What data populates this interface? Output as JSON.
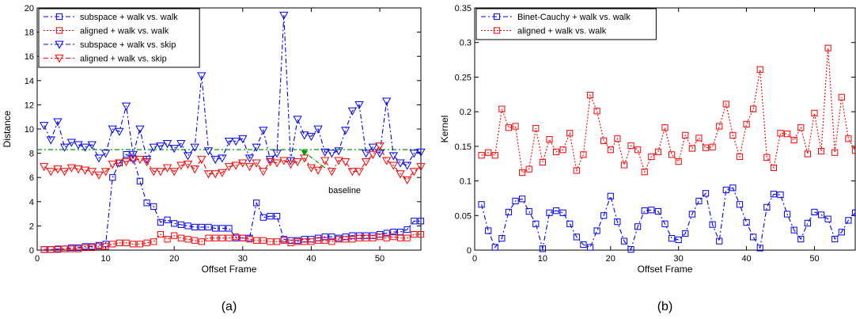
{
  "chart_data": [
    {
      "type": "line",
      "caption": "(a)",
      "xlabel": "Offset Frame",
      "ylabel": "Distance",
      "xlim": [
        0,
        56
      ],
      "ylim": [
        0,
        20
      ],
      "xticks": [
        0,
        10,
        20,
        30,
        40,
        50
      ],
      "yticks": [
        0,
        2,
        4,
        6,
        8,
        10,
        12,
        14,
        16,
        18,
        20
      ],
      "legend_position": "top-left",
      "annotation": {
        "text": "baseline",
        "arrow_from": [
          42,
          6.8
        ],
        "arrow_to": [
          38.5,
          8.3
        ],
        "text_at": [
          42.5,
          4.7
        ]
      },
      "baseline": {
        "y": 8.3,
        "color": "#009900"
      },
      "series": [
        {
          "name": "subspace + walk vs. walk",
          "color": "#0000ff",
          "marker": "square",
          "dash": "6,3,2,3",
          "x": [
            1,
            2,
            3,
            4,
            5,
            6,
            7,
            8,
            9,
            10,
            11,
            12,
            13,
            14,
            15,
            16,
            17,
            18,
            19,
            20,
            21,
            22,
            23,
            24,
            25,
            26,
            27,
            28,
            29,
            30,
            31,
            32,
            33,
            34,
            35,
            36,
            37,
            38,
            39,
            40,
            41,
            42,
            43,
            44,
            45,
            46,
            47,
            48,
            49,
            50,
            51,
            52,
            53,
            54,
            55,
            56
          ],
          "values": [
            0.05,
            0.05,
            0.1,
            0.1,
            0.2,
            0.2,
            0.3,
            0.3,
            0.4,
            0.5,
            6.0,
            7.2,
            7.9,
            7.6,
            5.7,
            3.9,
            3.6,
            2.3,
            2.5,
            2.2,
            2.1,
            2.0,
            1.9,
            1.9,
            1.9,
            1.8,
            1.8,
            1.8,
            1.0,
            1.0,
            1.0,
            3.9,
            2.7,
            2.8,
            2.8,
            0.9,
            0.8,
            0.8,
            0.9,
            0.9,
            1.0,
            1.1,
            1.1,
            1.0,
            1.1,
            1.2,
            1.2,
            1.2,
            1.2,
            1.3,
            1.4,
            1.5,
            1.5,
            1.7,
            2.4,
            2.4
          ]
        },
        {
          "name": "aligned + walk vs. walk",
          "color": "#ff0000",
          "marker": "square",
          "dash": "2,2",
          "x": [
            1,
            2,
            3,
            4,
            5,
            6,
            7,
            8,
            9,
            10,
            11,
            12,
            13,
            14,
            15,
            16,
            17,
            18,
            19,
            20,
            21,
            22,
            23,
            24,
            25,
            26,
            27,
            28,
            29,
            30,
            31,
            32,
            33,
            34,
            35,
            36,
            37,
            38,
            39,
            40,
            41,
            42,
            43,
            44,
            45,
            46,
            47,
            48,
            49,
            50,
            51,
            52,
            53,
            54,
            55,
            56
          ],
          "values": [
            0.05,
            0.05,
            0.05,
            0.1,
            0.1,
            0.1,
            0.2,
            0.2,
            0.3,
            0.3,
            0.5,
            0.6,
            0.6,
            0.5,
            0.5,
            0.6,
            0.7,
            1.3,
            0.9,
            1.2,
            1.0,
            0.9,
            0.8,
            0.7,
            1.0,
            1.0,
            1.0,
            1.0,
            1.1,
            1.0,
            0.9,
            0.8,
            0.8,
            0.7,
            0.7,
            0.8,
            0.6,
            0.7,
            0.7,
            0.7,
            0.8,
            0.8,
            0.7,
            0.9,
            0.9,
            0.9,
            1.0,
            1.0,
            1.0,
            1.1,
            1.0,
            1.1,
            1.0,
            1.0,
            1.3,
            1.3
          ]
        },
        {
          "name": "subspace + walk vs. skip",
          "color": "#0000ff",
          "marker": "triangle-down",
          "dash": "6,3,2,3",
          "x": [
            1,
            2,
            3,
            4,
            5,
            6,
            7,
            8,
            9,
            10,
            11,
            12,
            13,
            14,
            15,
            16,
            17,
            18,
            19,
            20,
            21,
            22,
            23,
            24,
            25,
            26,
            27,
            28,
            29,
            30,
            31,
            32,
            33,
            34,
            35,
            36,
            37,
            38,
            39,
            40,
            41,
            42,
            43,
            44,
            45,
            46,
            47,
            48,
            49,
            50,
            51,
            52,
            53,
            54,
            55,
            56
          ],
          "values": [
            10.3,
            9.1,
            10.6,
            8.5,
            8.9,
            8.7,
            8.5,
            8.7,
            7.6,
            8.0,
            10.0,
            9.8,
            11.9,
            7.9,
            10.0,
            7.5,
            8.5,
            8.6,
            8.8,
            8.4,
            8.8,
            7.8,
            8.5,
            14.4,
            8.2,
            7.5,
            7.6,
            9.0,
            9.0,
            9.2,
            7.6,
            8.5,
            9.9,
            7.5,
            8.0,
            19.4,
            7.4,
            10.8,
            9.5,
            9.4,
            10.0,
            8.1,
            8.0,
            8.2,
            9.9,
            11.5,
            12.0,
            8.0,
            8.5,
            8.0,
            12.3,
            7.8,
            7.2,
            7.0,
            8.0,
            8.1
          ]
        },
        {
          "name": "aligned + walk vs. skip",
          "color": "#ff0000",
          "marker": "triangle-down",
          "dash": "6,3,2,3",
          "x": [
            1,
            2,
            3,
            4,
            5,
            6,
            7,
            8,
            9,
            10,
            11,
            12,
            13,
            14,
            15,
            16,
            17,
            18,
            19,
            20,
            21,
            22,
            23,
            24,
            25,
            26,
            27,
            28,
            29,
            30,
            31,
            32,
            33,
            34,
            35,
            36,
            37,
            38,
            39,
            40,
            41,
            42,
            43,
            44,
            45,
            46,
            47,
            48,
            49,
            50,
            51,
            52,
            53,
            54,
            55,
            56
          ],
          "values": [
            6.9,
            6.5,
            6.7,
            6.5,
            6.8,
            6.7,
            6.6,
            6.5,
            6.2,
            6.5,
            7.1,
            7.2,
            7.3,
            7.5,
            7.5,
            7.3,
            6.5,
            6.5,
            6.8,
            6.5,
            7.0,
            7.1,
            6.7,
            7.5,
            6.3,
            6.3,
            6.4,
            6.9,
            7.0,
            7.2,
            6.9,
            7.2,
            6.5,
            7.3,
            7.2,
            7.4,
            7.1,
            7.3,
            7.6,
            6.8,
            6.6,
            7.4,
            6.5,
            7.4,
            7.3,
            6.5,
            6.5,
            7.3,
            7.9,
            8.6,
            7.4,
            7.0,
            6.3,
            5.8,
            6.5,
            6.9
          ]
        }
      ]
    },
    {
      "type": "line",
      "caption": "(b)",
      "xlabel": "Offset Frame",
      "ylabel": "Kernel",
      "xlim": [
        0,
        56
      ],
      "ylim": [
        0,
        0.35
      ],
      "xticks": [
        0,
        10,
        20,
        30,
        40,
        50
      ],
      "yticks": [
        0,
        0.05,
        0.1,
        0.15,
        0.2,
        0.25,
        0.3,
        0.35
      ],
      "legend_position": "top-left",
      "series": [
        {
          "name": "Binet-Cauchy + walk vs. walk",
          "color": "#0000ff",
          "marker": "square",
          "dash": "6,3,2,3",
          "x": [
            1,
            2,
            3,
            4,
            5,
            6,
            7,
            8,
            9,
            10,
            11,
            12,
            13,
            14,
            15,
            16,
            17,
            18,
            19,
            20,
            21,
            22,
            23,
            24,
            25,
            26,
            27,
            28,
            29,
            30,
            31,
            32,
            33,
            34,
            35,
            36,
            37,
            38,
            39,
            40,
            41,
            42,
            43,
            44,
            45,
            46,
            47,
            48,
            49,
            50,
            51,
            52,
            53,
            54,
            55,
            56
          ],
          "values": [
            0.066,
            0.028,
            0.004,
            0.017,
            0.055,
            0.071,
            0.074,
            0.056,
            0.038,
            0.002,
            0.054,
            0.057,
            0.054,
            0.038,
            0.019,
            0.008,
            0.004,
            0.028,
            0.05,
            0.078,
            0.041,
            0.013,
            0.001,
            0.034,
            0.057,
            0.058,
            0.056,
            0.038,
            0.017,
            0.015,
            0.024,
            0.052,
            0.071,
            0.082,
            0.037,
            0.013,
            0.087,
            0.09,
            0.066,
            0.04,
            0.019,
            0.003,
            0.062,
            0.081,
            0.08,
            0.052,
            0.029,
            0.016,
            0.039,
            0.055,
            0.051,
            0.045,
            0.016,
            0.026,
            0.043,
            0.054
          ]
        },
        {
          "name": "aligned + walk vs. walk",
          "color": "#ff0000",
          "marker": "square",
          "dash": "2,2",
          "x": [
            1,
            2,
            3,
            4,
            5,
            6,
            7,
            8,
            9,
            10,
            11,
            12,
            13,
            14,
            15,
            16,
            17,
            18,
            19,
            20,
            21,
            22,
            23,
            24,
            25,
            26,
            27,
            28,
            29,
            30,
            31,
            32,
            33,
            34,
            35,
            36,
            37,
            38,
            39,
            40,
            41,
            42,
            43,
            44,
            45,
            46,
            47,
            48,
            49,
            50,
            51,
            52,
            53,
            54,
            55,
            56
          ],
          "values": [
            0.137,
            0.141,
            0.137,
            0.204,
            0.177,
            0.179,
            0.112,
            0.117,
            0.176,
            0.127,
            0.16,
            0.142,
            0.145,
            0.169,
            0.115,
            0.138,
            0.224,
            0.201,
            0.158,
            0.145,
            0.161,
            0.123,
            0.151,
            0.145,
            0.113,
            0.135,
            0.142,
            0.177,
            0.138,
            0.128,
            0.166,
            0.147,
            0.162,
            0.148,
            0.149,
            0.179,
            0.211,
            0.166,
            0.135,
            0.182,
            0.204,
            0.261,
            0.134,
            0.119,
            0.169,
            0.168,
            0.159,
            0.177,
            0.139,
            0.198,
            0.143,
            0.292,
            0.141,
            0.221,
            0.161,
            0.144
          ]
        }
      ]
    }
  ]
}
